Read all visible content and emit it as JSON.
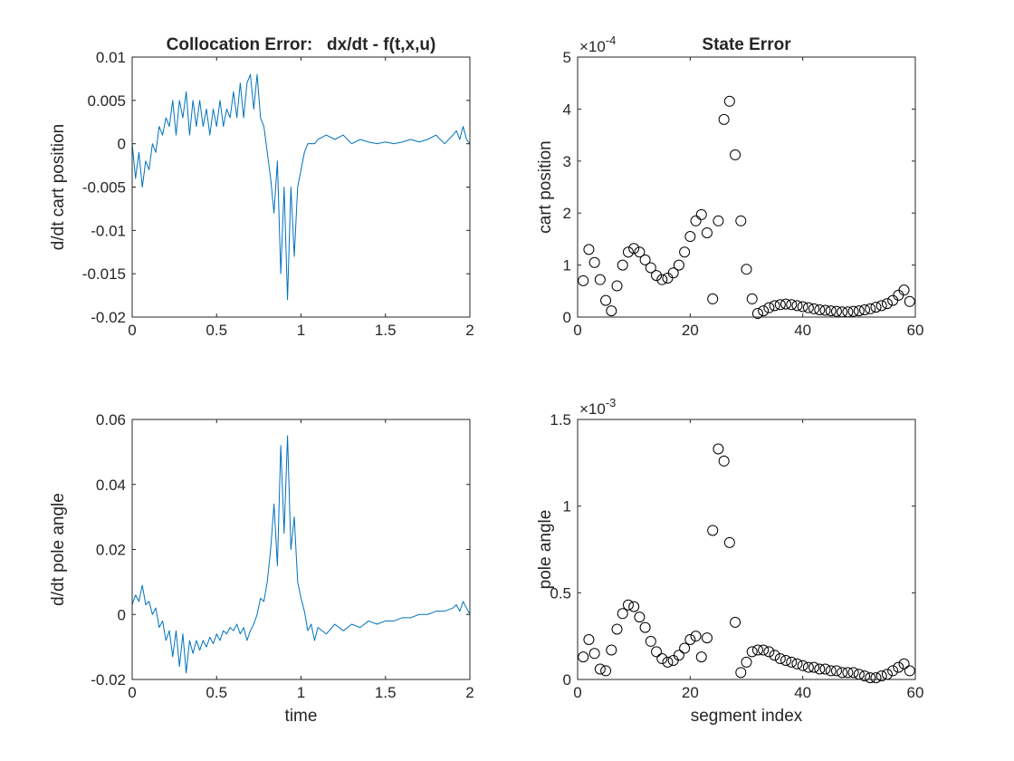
{
  "colors": {
    "line": "#0072bd",
    "axis": "#262626",
    "marker": "#000000"
  },
  "chart_data": [
    {
      "id": "collocation-cart",
      "type": "line",
      "title": "Collocation Error:   dx/dt - f(t,x,u)",
      "xlabel": "",
      "ylabel": "d/dt cart position",
      "xlim": [
        0,
        2
      ],
      "ylim": [
        -0.02,
        0.01
      ],
      "xticks": [
        0,
        0.5,
        1,
        1.5,
        2
      ],
      "xtick_labels": [
        "0",
        "0.5",
        "1",
        "1.5",
        "2"
      ],
      "yticks": [
        -0.02,
        -0.015,
        -0.01,
        -0.005,
        0,
        0.005,
        0.01
      ],
      "ytick_labels": [
        "-0.02",
        "-0.015",
        "-0.01",
        "-0.005",
        "0",
        "0.005",
        "0.01"
      ],
      "series": [
        {
          "x": [
            0,
            0.02,
            0.04,
            0.06,
            0.08,
            0.1,
            0.12,
            0.14,
            0.16,
            0.18,
            0.2,
            0.22,
            0.24,
            0.26,
            0.28,
            0.3,
            0.32,
            0.34,
            0.36,
            0.38,
            0.4,
            0.42,
            0.44,
            0.46,
            0.48,
            0.5,
            0.52,
            0.54,
            0.56,
            0.58,
            0.6,
            0.62,
            0.64,
            0.66,
            0.68,
            0.7,
            0.72,
            0.74,
            0.76,
            0.78,
            0.8,
            0.82,
            0.84,
            0.86,
            0.88,
            0.9,
            0.92,
            0.94,
            0.96,
            0.98,
            1.0,
            1.02,
            1.04,
            1.06,
            1.08,
            1.1,
            1.15,
            1.2,
            1.25,
            1.3,
            1.35,
            1.4,
            1.45,
            1.5,
            1.55,
            1.6,
            1.65,
            1.7,
            1.75,
            1.8,
            1.85,
            1.9,
            1.92,
            1.94,
            1.96,
            1.98,
            2.0
          ],
          "y": [
            0.0,
            -0.004,
            -0.001,
            -0.005,
            -0.002,
            -0.003,
            0.0,
            -0.001,
            0.002,
            0.001,
            0.003,
            0.002,
            0.005,
            0.001,
            0.005,
            0.003,
            0.006,
            0.001,
            0.005,
            0.002,
            0.005,
            0.002,
            0.004,
            0.001,
            0.004,
            0.002,
            0.005,
            0.002,
            0.004,
            0.003,
            0.006,
            0.003,
            0.007,
            0.003,
            0.007,
            0.008,
            0.004,
            0.008,
            0.003,
            0.002,
            -0.001,
            -0.004,
            -0.008,
            -0.002,
            -0.015,
            -0.005,
            -0.018,
            -0.005,
            -0.013,
            -0.005,
            -0.003,
            -0.001,
            0.0,
            0.0,
            0.0,
            0.0005,
            0.001,
            0.0005,
            0.001,
            0.0,
            0.0005,
            0.0002,
            0.0,
            0.0002,
            0.0,
            0.0002,
            0.0005,
            0.0002,
            0.0005,
            0.001,
            0.0,
            0.001,
            0.0015,
            0.0005,
            0.002,
            0.0005,
            0.0
          ]
        }
      ]
    },
    {
      "id": "state-cart",
      "type": "scatter",
      "title": "State Error",
      "xlabel": "",
      "ylabel": "cart position",
      "xlim": [
        0,
        60
      ],
      "ylim": [
        0,
        5
      ],
      "xticks": [
        0,
        20,
        40,
        60
      ],
      "xtick_labels": [
        "0",
        "20",
        "40",
        "60"
      ],
      "yticks": [
        0,
        1,
        2,
        3,
        4,
        5
      ],
      "ytick_labels": [
        "0",
        "1",
        "2",
        "3",
        "4",
        "5"
      ],
      "y_exponent_base": "×10",
      "y_exponent": "-4",
      "series": [
        {
          "x": [
            1,
            2,
            3,
            4,
            5,
            6,
            7,
            8,
            9,
            10,
            11,
            12,
            13,
            14,
            15,
            16,
            17,
            18,
            19,
            20,
            21,
            22,
            23,
            24,
            25,
            26,
            27,
            28,
            29,
            30,
            31,
            32,
            33,
            34,
            35,
            36,
            37,
            38,
            39,
            40,
            41,
            42,
            43,
            44,
            45,
            46,
            47,
            48,
            49,
            50,
            51,
            52,
            53,
            54,
            55,
            56,
            57,
            58,
            59
          ],
          "y": [
            0.7,
            1.3,
            1.05,
            0.72,
            0.32,
            0.12,
            0.6,
            1.0,
            1.25,
            1.32,
            1.25,
            1.1,
            0.95,
            0.8,
            0.72,
            0.75,
            0.85,
            1.0,
            1.25,
            1.55,
            1.85,
            1.97,
            1.62,
            0.35,
            1.85,
            3.8,
            4.15,
            3.12,
            1.85,
            0.92,
            0.35,
            0.07,
            0.12,
            0.18,
            0.22,
            0.24,
            0.25,
            0.24,
            0.22,
            0.2,
            0.18,
            0.16,
            0.14,
            0.13,
            0.12,
            0.11,
            0.1,
            0.1,
            0.11,
            0.12,
            0.14,
            0.16,
            0.19,
            0.22,
            0.26,
            0.32,
            0.42,
            0.52,
            0.3
          ]
        }
      ]
    },
    {
      "id": "collocation-pole",
      "type": "line",
      "title": "",
      "xlabel": "time",
      "ylabel": "d/dt pole angle",
      "xlim": [
        0,
        2
      ],
      "ylim": [
        -0.02,
        0.06
      ],
      "xticks": [
        0,
        0.5,
        1,
        1.5,
        2
      ],
      "xtick_labels": [
        "0",
        "0.5",
        "1",
        "1.5",
        "2"
      ],
      "yticks": [
        -0.02,
        0,
        0.02,
        0.04,
        0.06
      ],
      "ytick_labels": [
        "-0.02",
        "0",
        "0.02",
        "0.04",
        "0.06"
      ],
      "series": [
        {
          "x": [
            0,
            0.02,
            0.04,
            0.06,
            0.08,
            0.1,
            0.12,
            0.14,
            0.16,
            0.18,
            0.2,
            0.22,
            0.24,
            0.26,
            0.28,
            0.3,
            0.32,
            0.34,
            0.36,
            0.38,
            0.4,
            0.42,
            0.44,
            0.46,
            0.48,
            0.5,
            0.52,
            0.54,
            0.56,
            0.58,
            0.6,
            0.62,
            0.64,
            0.66,
            0.68,
            0.7,
            0.72,
            0.74,
            0.76,
            0.78,
            0.8,
            0.82,
            0.84,
            0.86,
            0.88,
            0.9,
            0.92,
            0.94,
            0.96,
            0.98,
            1.0,
            1.02,
            1.04,
            1.06,
            1.08,
            1.1,
            1.15,
            1.2,
            1.25,
            1.3,
            1.35,
            1.4,
            1.45,
            1.5,
            1.55,
            1.6,
            1.65,
            1.7,
            1.75,
            1.8,
            1.85,
            1.9,
            1.92,
            1.94,
            1.96,
            1.98,
            2.0
          ],
          "y": [
            0.003,
            0.006,
            0.004,
            0.009,
            0.003,
            0.004,
            0.0,
            0.002,
            -0.004,
            -0.002,
            -0.008,
            -0.005,
            -0.013,
            -0.005,
            -0.016,
            -0.006,
            -0.018,
            -0.008,
            -0.012,
            -0.008,
            -0.011,
            -0.008,
            -0.01,
            -0.007,
            -0.009,
            -0.006,
            -0.008,
            -0.005,
            -0.006,
            -0.004,
            -0.005,
            -0.003,
            -0.006,
            -0.004,
            -0.008,
            -0.005,
            -0.003,
            0.0,
            0.005,
            0.004,
            0.01,
            0.02,
            0.034,
            0.015,
            0.052,
            0.025,
            0.055,
            0.02,
            0.03,
            0.01,
            0.005,
            0.001,
            -0.005,
            -0.003,
            -0.008,
            -0.004,
            -0.006,
            -0.003,
            -0.005,
            -0.003,
            -0.004,
            -0.002,
            -0.003,
            -0.002,
            -0.002,
            -0.001,
            -0.001,
            0.0,
            0.0,
            0.001,
            0.001,
            0.002,
            0.003,
            0.001,
            0.004,
            0.002,
            0.0
          ]
        }
      ]
    },
    {
      "id": "state-pole",
      "type": "scatter",
      "title": "",
      "xlabel": "segment index",
      "ylabel": "pole angle",
      "xlim": [
        0,
        60
      ],
      "ylim": [
        0,
        1.5
      ],
      "xticks": [
        0,
        20,
        40,
        60
      ],
      "xtick_labels": [
        "0",
        "20",
        "40",
        "60"
      ],
      "yticks": [
        0,
        0.5,
        1,
        1.5
      ],
      "ytick_labels": [
        "0",
        "0.5",
        "1",
        "1.5"
      ],
      "y_exponent_base": "×10",
      "y_exponent": "-3",
      "series": [
        {
          "x": [
            1,
            2,
            3,
            4,
            5,
            6,
            7,
            8,
            9,
            10,
            11,
            12,
            13,
            14,
            15,
            16,
            17,
            18,
            19,
            20,
            21,
            22,
            23,
            24,
            25,
            26,
            27,
            28,
            29,
            30,
            31,
            32,
            33,
            34,
            35,
            36,
            37,
            38,
            39,
            40,
            41,
            42,
            43,
            44,
            45,
            46,
            47,
            48,
            49,
            50,
            51,
            52,
            53,
            54,
            55,
            56,
            57,
            58,
            59
          ],
          "y": [
            0.13,
            0.23,
            0.15,
            0.06,
            0.05,
            0.17,
            0.29,
            0.38,
            0.43,
            0.42,
            0.36,
            0.3,
            0.22,
            0.16,
            0.12,
            0.1,
            0.11,
            0.14,
            0.18,
            0.23,
            0.25,
            0.13,
            0.24,
            0.86,
            1.33,
            1.26,
            0.79,
            0.33,
            0.04,
            0.1,
            0.16,
            0.17,
            0.17,
            0.16,
            0.14,
            0.12,
            0.11,
            0.1,
            0.09,
            0.08,
            0.07,
            0.07,
            0.06,
            0.06,
            0.05,
            0.05,
            0.04,
            0.04,
            0.04,
            0.03,
            0.02,
            0.01,
            0.01,
            0.02,
            0.03,
            0.05,
            0.07,
            0.09,
            0.05
          ]
        }
      ]
    }
  ]
}
